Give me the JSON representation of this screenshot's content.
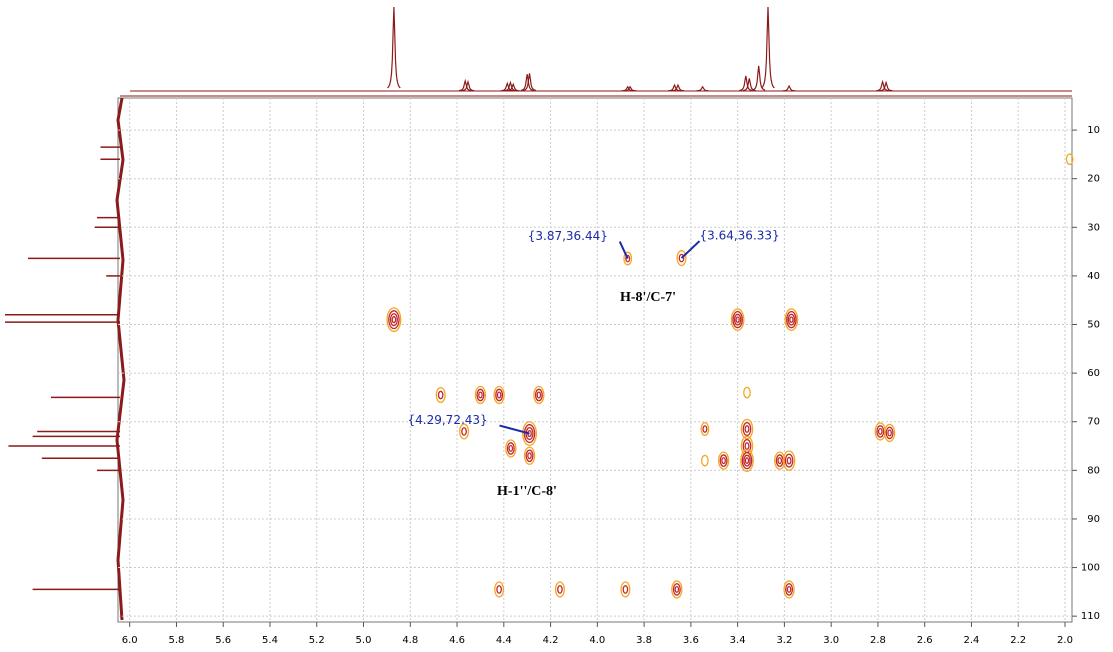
{
  "chart_data": {
    "type": "scatter",
    "xlim": [
      6.05,
      1.97
    ],
    "ylim": [
      3.4,
      111.2
    ],
    "xticks": [
      {
        "value": 6.0,
        "label": "6.0"
      },
      5.8,
      5.6,
      5.4,
      5.2,
      {
        "value": 5.0,
        "label": "5.0"
      },
      4.8,
      4.6,
      4.4,
      4.2,
      {
        "value": 4.0,
        "label": "4.0"
      },
      3.8,
      3.6,
      3.4,
      3.2,
      {
        "value": 3.0,
        "label": "3.0"
      },
      2.8,
      2.6,
      2.4,
      2.2,
      {
        "value": 2.0,
        "label": "2.0"
      }
    ],
    "yticks": [
      10,
      20,
      30,
      40,
      50,
      60,
      70,
      80,
      90,
      100,
      110
    ],
    "grid": true,
    "color": "#f5a623",
    "core_color": "#c0282a",
    "x": [
      4.87,
      3.87,
      3.64,
      3.4,
      3.17,
      4.67,
      4.5,
      4.42,
      4.25,
      3.36,
      4.57,
      4.29,
      4.29,
      4.37,
      3.54,
      3.36,
      3.36,
      3.36,
      3.46,
      3.54,
      3.22,
      3.18,
      2.79,
      2.75,
      4.42,
      4.16,
      3.88,
      3.66,
      3.18,
      1.98
    ],
    "values": [
      49,
      36.44,
      36.33,
      49,
      49,
      64.5,
      64.5,
      64.5,
      64.5,
      64,
      72,
      72.43,
      77,
      75.5,
      71.5,
      71.5,
      75,
      78,
      78,
      78,
      78,
      78,
      72,
      72.3,
      104.5,
      104.5,
      104.5,
      104.5,
      104.5,
      16
    ],
    "sizes": [
      8,
      3,
      4,
      7,
      7,
      4,
      5,
      5,
      5,
      2,
      4,
      8,
      5,
      5,
      3,
      6,
      6,
      7,
      5,
      2,
      5,
      6,
      5,
      5,
      4,
      4,
      4,
      5,
      5,
      2
    ],
    "annotations": [
      "{3.87,36.44}",
      "{3.64,36.33}",
      "{4.29,72.43}",
      "H-8'/C-7'",
      "H-1''/C-8'"
    ],
    "f2_projection": {
      "color": "#8b1a1a",
      "x": [
        4.87,
        4.565,
        4.553,
        4.385,
        4.372,
        4.36,
        4.3,
        4.29,
        3.87,
        3.86,
        3.67,
        3.655,
        3.55,
        3.365,
        3.35,
        3.31,
        3.27,
        3.18,
        2.78,
        2.765
      ],
      "values": [
        100,
        12,
        11,
        9,
        10,
        8,
        20,
        21,
        5,
        5,
        7,
        7,
        5,
        18,
        15,
        30,
        100,
        6,
        11,
        10
      ]
    },
    "f1_projection": {
      "color": "#8b1a1a",
      "y": [
        13.5,
        16,
        28,
        30,
        36.4,
        40,
        48,
        49.5,
        65,
        72,
        73,
        75,
        77.5,
        80,
        104.5
      ],
      "values": [
        17,
        17,
        20,
        22,
        80,
        12,
        100,
        100,
        60,
        72,
        76,
        97,
        68,
        20,
        76
      ]
    }
  }
}
